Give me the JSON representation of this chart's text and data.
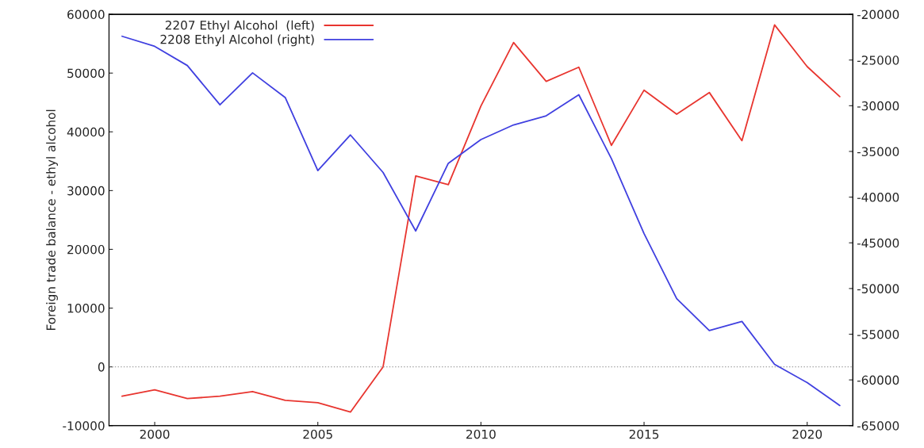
{
  "chart_data": {
    "type": "line",
    "ylabel": "Foreign trade balance - ethyl alcohol",
    "x": [
      1999,
      2000,
      2001,
      2002,
      2003,
      2004,
      2005,
      2006,
      2007,
      2008,
      2009,
      2010,
      2011,
      2012,
      2013,
      2014,
      2015,
      2016,
      2017,
      2018,
      2019,
      2020,
      2021
    ],
    "series": [
      {
        "name": "2207 Ethyl Alcohol  (left)",
        "color": "#e8352f",
        "values": [
          -5000,
          -3900,
          -5400,
          -5000,
          -4200,
          -5700,
          -6100,
          -7700,
          0,
          32500,
          31000,
          44400,
          55200,
          48600,
          51000,
          37700,
          47100,
          43000,
          46700,
          38500,
          58200,
          51100,
          46000
        ]
      },
      {
        "name": "2208 Ethyl Alcohol (right)",
        "color": "#4040e0",
        "axis": "y2",
        "values": [
          -22400,
          -23500,
          -25600,
          -29900,
          -26400,
          -29100,
          -37100,
          -33200,
          -37300,
          -43700,
          -36300,
          -33700,
          -32100,
          -31100,
          -28800,
          -35800,
          -44000,
          -51100,
          -54600,
          -53600,
          -58300,
          -60300,
          -62800
        ]
      }
    ],
    "xlim": [
      1998.6,
      2021.4
    ],
    "xticks": [
      2000,
      2005,
      2010,
      2015,
      2020
    ],
    "ylim": [
      -10000,
      60000
    ],
    "yticks": [
      -10000,
      0,
      10000,
      20000,
      30000,
      40000,
      50000,
      60000
    ],
    "y2lim": [
      -65000,
      -20000
    ],
    "y2ticks": [
      -65000,
      -60000,
      -55000,
      -50000,
      -45000,
      -40000,
      -35000,
      -30000,
      -25000,
      -20000
    ],
    "ref_lines": [
      {
        "axis": "y",
        "value": 0,
        "color": "#a0a0a0",
        "line_style": "dotted"
      }
    ],
    "legend": "top left",
    "grid": false
  }
}
